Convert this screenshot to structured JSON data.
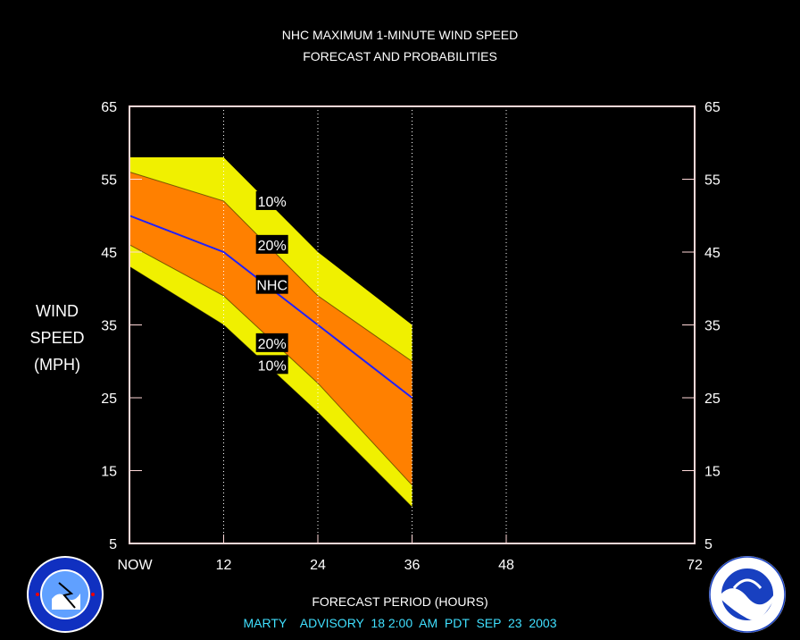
{
  "title_line1": "NHC MAXIMUM 1-MINUTE WIND SPEED",
  "title_line2": "FORECAST AND PROBABILITIES",
  "ylabel_lines": [
    "WIND",
    "SPEED",
    "(MPH)"
  ],
  "xlabel": "FORECAST PERIOD (HOURS)",
  "advisory_line": "MARTY    ADVISORY  18 2:00  AM  PDT  SEP  23  2003",
  "colors": {
    "background": "#000000",
    "band_10": "#f0f000",
    "band_20": "#ff8000",
    "nhc_line": "#2020ff",
    "axis_frame": "#ffd8d8",
    "advisory_text": "#40e0ff"
  },
  "logos": {
    "left": "nws-logo",
    "right": "noaa-logo"
  },
  "chart_data": {
    "type": "area",
    "xlim": [
      0,
      72
    ],
    "ylim": [
      5,
      65
    ],
    "x_ticks": [
      0,
      12,
      24,
      36,
      48,
      72
    ],
    "x_tick_labels": [
      "NOW",
      "12",
      "24",
      "36",
      "48",
      "72"
    ],
    "y_ticks": [
      5,
      15,
      25,
      35,
      45,
      55,
      65
    ],
    "y_tick_labels": [
      "5",
      "15",
      "25",
      "35",
      "45",
      "55",
      "65"
    ],
    "vertical_gridlines": [
      12,
      24,
      36,
      48
    ],
    "grid": "dotted vertical",
    "x": [
      0,
      12,
      24,
      36
    ],
    "series": [
      {
        "name": "10%",
        "kind": "upper",
        "values": [
          58,
          58,
          45,
          35
        ]
      },
      {
        "name": "20%",
        "kind": "upper",
        "values": [
          56,
          52,
          39,
          30
        ]
      },
      {
        "name": "NHC",
        "kind": "center",
        "values": [
          50,
          45,
          35,
          25
        ]
      },
      {
        "name": "20%",
        "kind": "lower",
        "values": [
          46,
          39,
          27,
          13
        ]
      },
      {
        "name": "10%",
        "kind": "lower",
        "values": [
          43,
          35,
          23,
          10
        ]
      }
    ],
    "band_labels": [
      {
        "text": "10%",
        "x": 16,
        "y": 52
      },
      {
        "text": "20%",
        "x": 16,
        "y": 46
      },
      {
        "text": "NHC",
        "x": 16,
        "y": 40.5
      },
      {
        "text": "20%",
        "x": 16,
        "y": 32.5
      },
      {
        "text": "10%",
        "x": 16,
        "y": 29.5
      }
    ]
  }
}
